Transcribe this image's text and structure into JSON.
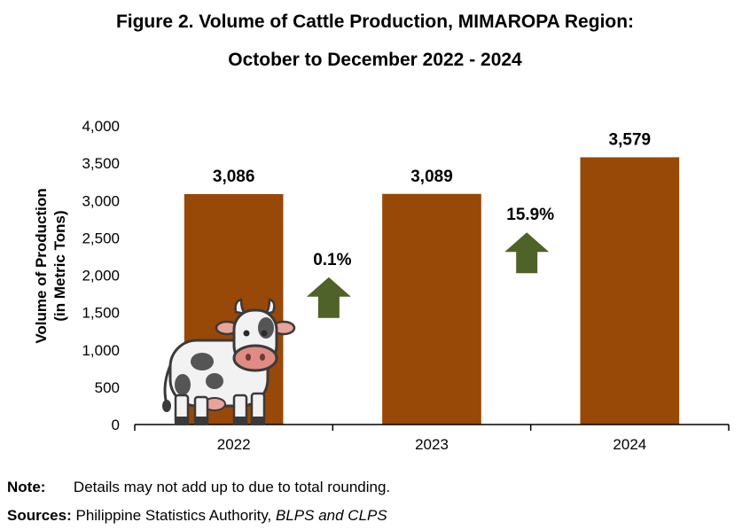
{
  "chart_data": {
    "type": "bar",
    "title": "Figure 2. Volume of Cattle Production, MIMAROPA Region:",
    "subtitle": "October to December 2022 - 2024",
    "ylabel_line1": "Volume of Production",
    "ylabel_line2": "(in Metric Tons)",
    "xlabel": "",
    "categories": [
      "2022",
      "2023",
      "2024"
    ],
    "values": [
      3086,
      3089,
      3579
    ],
    "value_labels": [
      "3,086",
      "3,089",
      "3,579"
    ],
    "ylim": [
      0,
      4000
    ],
    "yticks": [
      0,
      500,
      1000,
      1500,
      2000,
      2500,
      3000,
      3500,
      4000
    ],
    "ytick_labels": [
      "0",
      "500",
      "1,000",
      "1,500",
      "2,000",
      "2,500",
      "3,000",
      "3,500",
      "4,000"
    ],
    "bar_color": "#984807",
    "grid": false,
    "legend": "none",
    "annotations": [
      {
        "between": [
          "2022",
          "2023"
        ],
        "label": "0.1%",
        "arrow": "up",
        "color": "#4F6228",
        "level": 1700
      },
      {
        "between": [
          "2023",
          "2024"
        ],
        "label": "15.9%",
        "arrow": "up",
        "color": "#4F6228",
        "level": 2300
      }
    ]
  },
  "footer": {
    "note_label": "Note:",
    "note_text": "Details may not add up to due to total rounding.",
    "sources_label": "Sources:",
    "sources_text": "Philippine Statistics Authority,",
    "sources_italic": "BLPS and CLPS"
  },
  "decoration": {
    "icon": "cow-icon"
  }
}
